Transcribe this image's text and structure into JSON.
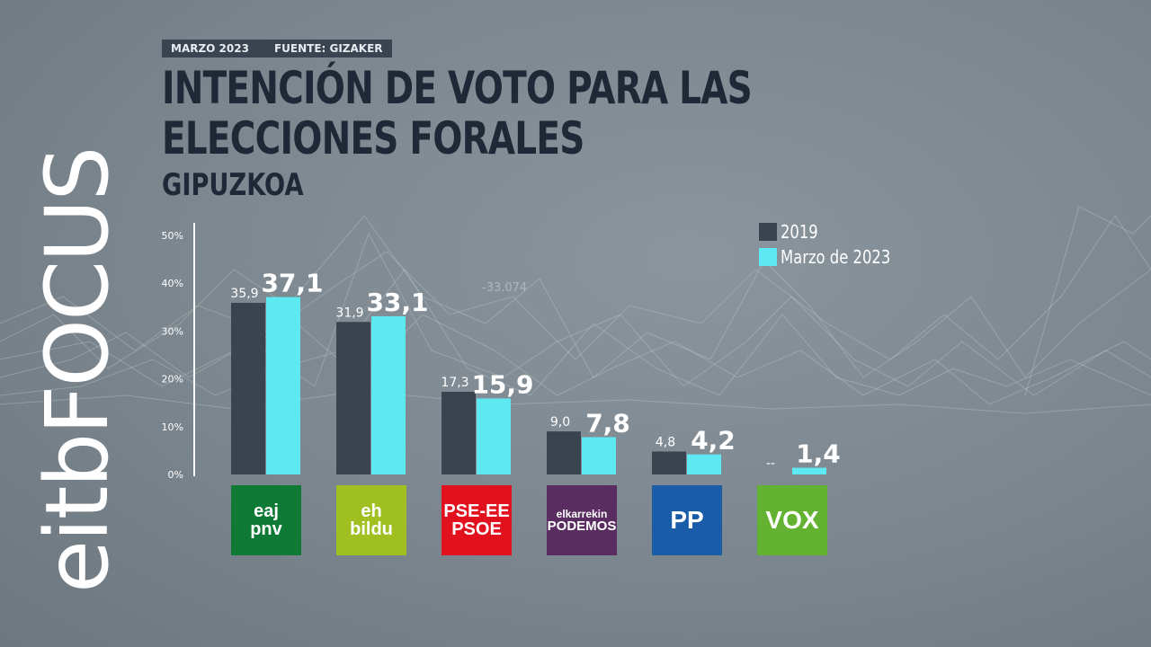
{
  "header": {
    "date": "MARZO 2023",
    "source": "FUENTE: GIZAKER"
  },
  "title": "INTENCIÓN DE VOTO PARA LAS ELECCIONES FORALES",
  "subtitle": "GIPUZKOA",
  "brand": {
    "part1": "eitb",
    "part2": "FOCUS"
  },
  "background_label": "-33.074",
  "legend": [
    {
      "label": "2019",
      "color": "#3a4350"
    },
    {
      "label": "Marzo de 2023",
      "color": "#5ee8f2"
    }
  ],
  "chart_data": {
    "type": "bar",
    "title": "INTENCIÓN DE VOTO PARA LAS ELECCIONES FORALES",
    "subtitle": "GIPUZKOA",
    "categories": [
      "EAJ-PNV",
      "EH Bildu",
      "PSE-EE PSOE",
      "Elkarrekin Podemos",
      "PP",
      "Vox"
    ],
    "series": [
      {
        "name": "2019",
        "values": [
          35.9,
          31.9,
          17.3,
          9.0,
          4.8,
          null
        ],
        "labels": [
          "35,9",
          "31,9",
          "17,3",
          "9,0",
          "4,8",
          "--"
        ],
        "color": "#3a4350"
      },
      {
        "name": "Marzo de 2023",
        "values": [
          37.1,
          33.1,
          15.9,
          7.8,
          4.2,
          1.4
        ],
        "labels": [
          "37,1",
          "33,1",
          "15,9",
          "7,8",
          "4,2",
          "1,4"
        ],
        "color": "#5ee8f2"
      }
    ],
    "ylim": [
      0,
      50
    ],
    "yticks": [
      0,
      10,
      20,
      30,
      40,
      50
    ],
    "ytick_labels": [
      "0%",
      "10%",
      "20%",
      "30%",
      "40%",
      "50%"
    ],
    "legend_position": "top-right",
    "grid": false
  },
  "parties": [
    {
      "lines": [
        "eaj",
        "pnv"
      ],
      "color": "#0f7a35",
      "text_color": "#ffffff"
    },
    {
      "lines": [
        "eh",
        "bildu"
      ],
      "color": "#9fc020",
      "text_color": "#ffffff"
    },
    {
      "lines": [
        "PSE-EE",
        "PSOE"
      ],
      "color": "#e1121d",
      "text_color": "#ffffff"
    },
    {
      "lines": [
        "elkarrekin",
        "PODEMOS"
      ],
      "color": "#5a2d61",
      "text_color": "#ffffff"
    },
    {
      "lines": [
        "PP"
      ],
      "color": "#1b5ca8",
      "text_color": "#ffffff"
    },
    {
      "lines": [
        "VOX"
      ],
      "color": "#63b231",
      "text_color": "#ffffff"
    }
  ]
}
